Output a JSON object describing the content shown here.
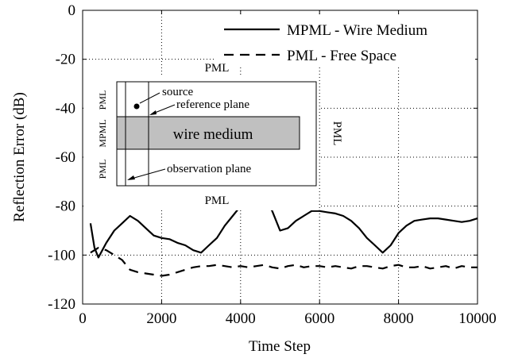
{
  "chart_data": {
    "type": "line",
    "xlabel": "Time Step",
    "ylabel": "Reflection Error (dB)",
    "xlim": [
      0,
      10000
    ],
    "ylim": [
      -120,
      0
    ],
    "xticks": [
      0,
      2000,
      4000,
      6000,
      8000,
      10000
    ],
    "yticks": [
      0,
      -20,
      -40,
      -60,
      -80,
      -100,
      -120
    ],
    "grid": true,
    "legend_position": "top-right",
    "series": [
      {
        "name": "MPML - Wire Medium",
        "style": "solid",
        "x": [
          200,
          300,
          400,
          500,
          600,
          800,
          1000,
          1200,
          1400,
          1600,
          1800,
          2000,
          2200,
          2400,
          2600,
          2800,
          3000,
          3200,
          3400,
          3600,
          3800,
          4000,
          4200,
          4400,
          4600,
          4800,
          5000,
          5200,
          5400,
          5600,
          5800,
          6000,
          6200,
          6400,
          6600,
          6800,
          7000,
          7200,
          7400,
          7600,
          7800,
          8000,
          8200,
          8400,
          8600,
          8800,
          9000,
          9200,
          9400,
          9600,
          9800,
          10000
        ],
        "y": [
          -87,
          -97,
          -101,
          -98,
          -95,
          -90,
          -87,
          -84,
          -86,
          -89,
          -92,
          -93,
          -93.5,
          -95,
          -96,
          -98,
          -99,
          -96,
          -93,
          -88,
          -84,
          -80,
          -77,
          -76,
          -77,
          -82,
          -90,
          -89,
          -86,
          -84,
          -82,
          -82,
          -82.5,
          -83,
          -84,
          -86,
          -89,
          -93,
          -96,
          -99,
          -96,
          -91,
          -88,
          -86,
          -85.5,
          -85,
          -85,
          -85.5,
          -86,
          -86.5,
          -86,
          -85
        ]
      },
      {
        "name": "PML - Free Space",
        "style": "dashed",
        "x": [
          200,
          400,
          600,
          800,
          1000,
          1200,
          1400,
          1600,
          1800,
          2000,
          2200,
          2400,
          2600,
          2800,
          3000,
          3200,
          3400,
          3600,
          3800,
          4000,
          4200,
          4400,
          4600,
          4800,
          5000,
          5200,
          5400,
          5600,
          5800,
          6000,
          6200,
          6400,
          6600,
          6800,
          7000,
          7200,
          7400,
          7600,
          7800,
          8000,
          8200,
          8400,
          8600,
          8800,
          9000,
          9200,
          9400,
          9600,
          9800,
          10000
        ],
        "y": [
          -99,
          -97,
          -98,
          -100,
          -102,
          -106,
          -107,
          -107.5,
          -108,
          -108.5,
          -108,
          -107,
          -106,
          -105,
          -104.5,
          -104.5,
          -104,
          -104.5,
          -105,
          -104.5,
          -105,
          -104.5,
          -104,
          -105,
          -105.5,
          -104.5,
          -104,
          -105,
          -104.5,
          -104.5,
          -105,
          -104.5,
          -105,
          -105.5,
          -104.5,
          -104.5,
          -105,
          -105.5,
          -104.5,
          -104,
          -105,
          -105,
          -104.5,
          -105.5,
          -105,
          -104.5,
          -105.5,
          -104.5,
          -105,
          -105
        ]
      }
    ]
  },
  "inset": {
    "top_label": "PML",
    "bottom_label": "PML",
    "right_label": "PML",
    "left_pml_top": "PML",
    "left_mpml": "MPML",
    "left_pml_bottom": "PML",
    "source_label": "source",
    "reference_plane_label": "reference plane",
    "wire_medium_label": "wire medium",
    "observation_plane_label": "observation plane"
  }
}
